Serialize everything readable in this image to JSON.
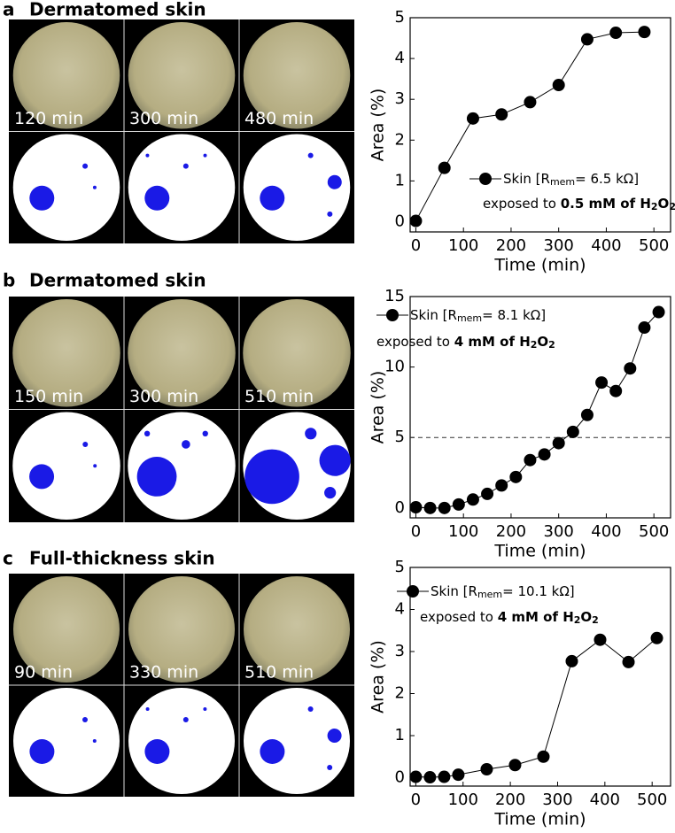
{
  "chart_data": [
    {
      "type": "line",
      "panel_label": "a",
      "title": "Dermatomed skin",
      "image_labels": [
        "120 min",
        "300 min",
        "480 min"
      ],
      "x": [
        0,
        60,
        120,
        180,
        240,
        300,
        360,
        420,
        480
      ],
      "series": [
        {
          "color": "#000000",
          "values": [
            0.02,
            1.32,
            2.53,
            2.63,
            2.93,
            3.35,
            4.47,
            4.63,
            4.65
          ]
        }
      ],
      "legend": [
        "Skin [R",
        "mem",
        "= 6.5 kΩ]"
      ],
      "annotation": [
        "exposed to ",
        "0.5 mM of H",
        "2",
        "O",
        "2"
      ],
      "xlabel": "Time (min)",
      "ylabel": "Area (%)",
      "xlim": [
        -12,
        535
      ],
      "ylim": [
        -0.25,
        5
      ],
      "xticks": [
        0,
        100,
        200,
        300,
        400,
        500
      ],
      "yticks": [
        0,
        1,
        2,
        3,
        4,
        5
      ]
    },
    {
      "type": "line",
      "panel_label": "b",
      "title": "Dermatomed skin",
      "image_labels": [
        "150 min",
        "300 min",
        "510 min"
      ],
      "x": [
        0,
        30,
        60,
        90,
        120,
        150,
        180,
        210,
        240,
        270,
        300,
        330,
        360,
        390,
        420,
        450,
        480,
        510
      ],
      "series": [
        {
          "color": "#000000",
          "values": [
            0.05,
            0,
            0,
            0.25,
            0.6,
            1.0,
            1.6,
            2.2,
            3.4,
            3.8,
            4.6,
            5.4,
            6.6,
            8.9,
            8.3,
            9.9,
            12.8,
            13.9
          ]
        }
      ],
      "legend": [
        "Skin [R",
        "mem",
        "= 8.1 kΩ]"
      ],
      "annotation": [
        "exposed to ",
        "4 mM of H",
        "2",
        "O",
        "2"
      ],
      "hline": 5,
      "xlabel": "Time (min)",
      "ylabel": "Area (%)",
      "xlim": [
        -12,
        535
      ],
      "ylim": [
        -0.7,
        15
      ],
      "xticks": [
        0,
        100,
        200,
        300,
        400,
        500
      ],
      "yticks": [
        0,
        5,
        10,
        15
      ]
    },
    {
      "type": "line",
      "panel_label": "c",
      "title": "Full-thickness skin",
      "image_labels": [
        "90 min",
        "330 min",
        "510 min"
      ],
      "x": [
        0,
        30,
        60,
        90,
        150,
        210,
        270,
        330,
        390,
        450,
        510
      ],
      "series": [
        {
          "color": "#000000",
          "values": [
            0.02,
            0.01,
            0.02,
            0.07,
            0.2,
            0.3,
            0.5,
            2.77,
            3.28,
            2.75,
            3.32
          ]
        }
      ],
      "legend": [
        "Skin [R",
        "mem",
        "= 10.1 kΩ]"
      ],
      "annotation": [
        "exposed to ",
        "4 mM of H",
        "2",
        "O",
        "2"
      ],
      "xlabel": "Time (min)",
      "ylabel": "Area (%)",
      "xlim": [
        -12,
        539
      ],
      "ylim": [
        -0.2,
        5
      ],
      "xticks": [
        0,
        100,
        200,
        300,
        400,
        500
      ],
      "yticks": [
        0,
        1,
        2,
        3,
        4,
        5
      ]
    }
  ]
}
